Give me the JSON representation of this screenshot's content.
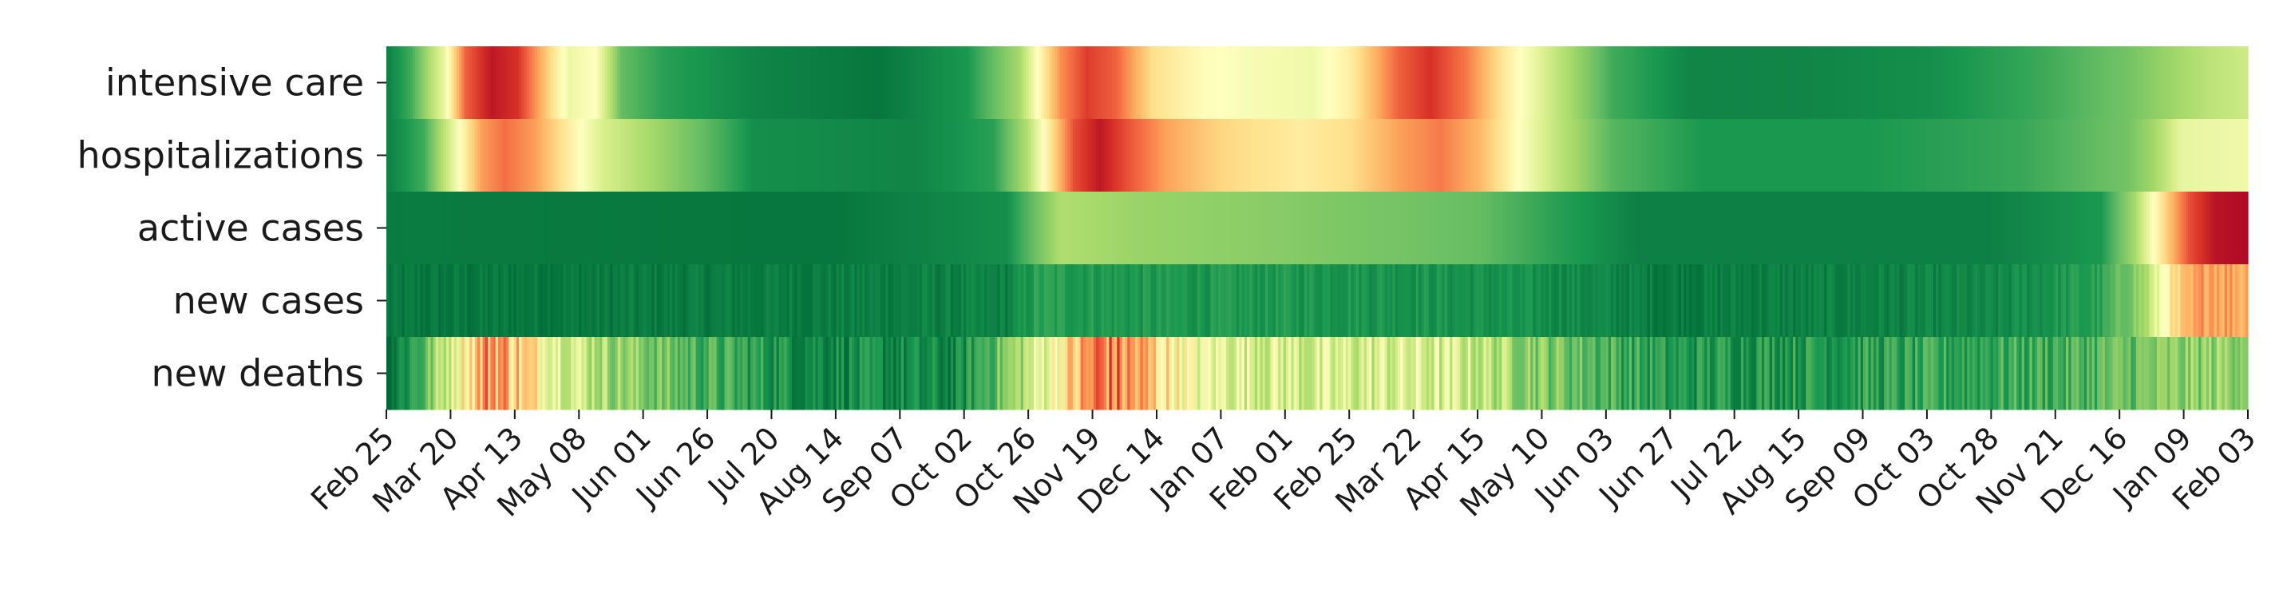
{
  "chart_data": {
    "type": "heatmap",
    "title": "",
    "xlabel": "",
    "ylabel": "",
    "colormap": "RdYlGn_r",
    "colorbar": false,
    "rows": [
      "intensive care",
      "hospitalizations",
      "active cases",
      "new cases",
      "new deaths"
    ],
    "x_tick_labels": [
      "Feb 25",
      "Mar 20",
      "Apr 13",
      "May 08",
      "Jun 01",
      "Jun 26",
      "Jul 20",
      "Aug 14",
      "Sep 07",
      "Oct 02",
      "Oct 26",
      "Nov 19",
      "Dec 14",
      "Jan 07",
      "Feb 01",
      "Feb 25",
      "Mar 22",
      "Apr 15",
      "May 10",
      "Jun 03",
      "Jun 27",
      "Jul 22",
      "Aug 15",
      "Sep 09",
      "Oct 03",
      "Oct 28",
      "Nov 21",
      "Dec 16",
      "Jan 09",
      "Feb 03"
    ],
    "x_range": [
      "2020-02-25",
      "2022-02-10"
    ],
    "value_range": [
      0,
      1
    ],
    "series": [
      {
        "name": "intensive care",
        "knots": [
          [
            "2020-02-25",
            0.05
          ],
          [
            "2020-03-05",
            0.15
          ],
          [
            "2020-03-18",
            0.45
          ],
          [
            "2020-03-26",
            0.82
          ],
          [
            "2020-04-05",
            0.95
          ],
          [
            "2020-04-15",
            0.9
          ],
          [
            "2020-04-28",
            0.6
          ],
          [
            "2020-05-05",
            0.45
          ],
          [
            "2020-05-15",
            0.5
          ],
          [
            "2020-05-25",
            0.2
          ],
          [
            "2020-06-10",
            0.12
          ],
          [
            "2020-07-15",
            0.06
          ],
          [
            "2020-09-01",
            0.03
          ],
          [
            "2020-10-05",
            0.1
          ],
          [
            "2020-10-25",
            0.3
          ],
          [
            "2020-11-01",
            0.5
          ],
          [
            "2020-11-10",
            0.75
          ],
          [
            "2020-11-20",
            0.88
          ],
          [
            "2020-12-01",
            0.82
          ],
          [
            "2020-12-15",
            0.6
          ],
          [
            "2021-01-01",
            0.52
          ],
          [
            "2021-01-20",
            0.48
          ],
          [
            "2021-02-15",
            0.46
          ],
          [
            "2021-03-01",
            0.55
          ],
          [
            "2021-03-20",
            0.82
          ],
          [
            "2021-04-01",
            0.9
          ],
          [
            "2021-04-15",
            0.78
          ],
          [
            "2021-05-01",
            0.55
          ],
          [
            "2021-05-20",
            0.35
          ],
          [
            "2021-06-10",
            0.15
          ],
          [
            "2021-07-10",
            0.06
          ],
          [
            "2021-08-20",
            0.06
          ],
          [
            "2021-10-10",
            0.08
          ],
          [
            "2021-11-20",
            0.14
          ],
          [
            "2021-12-25",
            0.22
          ],
          [
            "2022-01-25",
            0.34
          ],
          [
            "2022-02-10",
            0.38
          ]
        ]
      },
      {
        "name": "hospitalizations",
        "knots": [
          [
            "2020-02-25",
            0.05
          ],
          [
            "2020-03-10",
            0.15
          ],
          [
            "2020-03-20",
            0.4
          ],
          [
            "2020-04-01",
            0.72
          ],
          [
            "2020-04-10",
            0.8
          ],
          [
            "2020-04-22",
            0.72
          ],
          [
            "2020-05-05",
            0.55
          ],
          [
            "2020-05-18",
            0.4
          ],
          [
            "2020-06-05",
            0.3
          ],
          [
            "2020-06-25",
            0.2
          ],
          [
            "2020-07-15",
            0.08
          ],
          [
            "2020-09-15",
            0.06
          ],
          [
            "2020-10-15",
            0.12
          ],
          [
            "2020-10-28",
            0.32
          ],
          [
            "2020-11-05",
            0.55
          ],
          [
            "2020-11-15",
            0.85
          ],
          [
            "2020-11-25",
            0.95
          ],
          [
            "2020-12-05",
            0.85
          ],
          [
            "2020-12-20",
            0.72
          ],
          [
            "2021-01-10",
            0.62
          ],
          [
            "2021-02-10",
            0.56
          ],
          [
            "2021-03-01",
            0.6
          ],
          [
            "2021-03-20",
            0.72
          ],
          [
            "2021-04-05",
            0.78
          ],
          [
            "2021-04-20",
            0.68
          ],
          [
            "2021-05-05",
            0.5
          ],
          [
            "2021-05-20",
            0.35
          ],
          [
            "2021-06-10",
            0.18
          ],
          [
            "2021-07-15",
            0.1
          ],
          [
            "2021-09-15",
            0.1
          ],
          [
            "2021-11-15",
            0.14
          ],
          [
            "2021-12-25",
            0.22
          ],
          [
            "2022-01-05",
            0.3
          ],
          [
            "2022-01-15",
            0.44
          ],
          [
            "2022-02-10",
            0.46
          ]
        ]
      },
      {
        "name": "active cases",
        "knots": [
          [
            "2020-02-25",
            0.04
          ],
          [
            "2020-08-15",
            0.03
          ],
          [
            "2020-10-20",
            0.08
          ],
          [
            "2020-11-01",
            0.22
          ],
          [
            "2020-11-10",
            0.32
          ],
          [
            "2020-12-10",
            0.28
          ],
          [
            "2021-01-20",
            0.26
          ],
          [
            "2021-02-20",
            0.24
          ],
          [
            "2021-03-25",
            0.22
          ],
          [
            "2021-04-20",
            0.2
          ],
          [
            "2021-05-20",
            0.12
          ],
          [
            "2021-06-20",
            0.05
          ],
          [
            "2021-11-01",
            0.05
          ],
          [
            "2021-12-15",
            0.1
          ],
          [
            "2021-12-28",
            0.3
          ],
          [
            "2022-01-08",
            0.6
          ],
          [
            "2022-01-18",
            0.85
          ],
          [
            "2022-01-28",
            0.96
          ],
          [
            "2022-02-10",
            0.98
          ]
        ]
      },
      {
        "name": "new cases",
        "noise": 0.06,
        "knots": [
          [
            "2020-02-25",
            0.03
          ],
          [
            "2020-10-20",
            0.05
          ],
          [
            "2020-11-01",
            0.12
          ],
          [
            "2020-12-10",
            0.1
          ],
          [
            "2021-03-01",
            0.1
          ],
          [
            "2021-05-15",
            0.08
          ],
          [
            "2021-07-01",
            0.04
          ],
          [
            "2021-11-01",
            0.06
          ],
          [
            "2021-12-15",
            0.12
          ],
          [
            "2022-01-01",
            0.3
          ],
          [
            "2022-01-10",
            0.55
          ],
          [
            "2022-01-25",
            0.75
          ],
          [
            "2022-02-10",
            0.7
          ]
        ]
      },
      {
        "name": "new deaths",
        "noise": 0.14,
        "knots": [
          [
            "2020-02-25",
            0.02
          ],
          [
            "2020-03-10",
            0.18
          ],
          [
            "2020-03-25",
            0.55
          ],
          [
            "2020-04-05",
            0.78
          ],
          [
            "2020-04-15",
            0.65
          ],
          [
            "2020-05-01",
            0.45
          ],
          [
            "2020-05-20",
            0.3
          ],
          [
            "2020-06-20",
            0.18
          ],
          [
            "2020-08-01",
            0.08
          ],
          [
            "2020-10-01",
            0.06
          ],
          [
            "2020-10-25",
            0.3
          ],
          [
            "2020-11-10",
            0.55
          ],
          [
            "2020-11-25",
            0.8
          ],
          [
            "2020-12-10",
            0.7
          ],
          [
            "2021-01-01",
            0.45
          ],
          [
            "2021-02-15",
            0.38
          ],
          [
            "2021-03-20",
            0.4
          ],
          [
            "2021-04-15",
            0.38
          ],
          [
            "2021-05-15",
            0.25
          ],
          [
            "2021-07-01",
            0.1
          ],
          [
            "2021-10-01",
            0.12
          ],
          [
            "2021-12-01",
            0.16
          ],
          [
            "2022-01-15",
            0.25
          ],
          [
            "2022-02-10",
            0.3
          ]
        ]
      }
    ]
  }
}
